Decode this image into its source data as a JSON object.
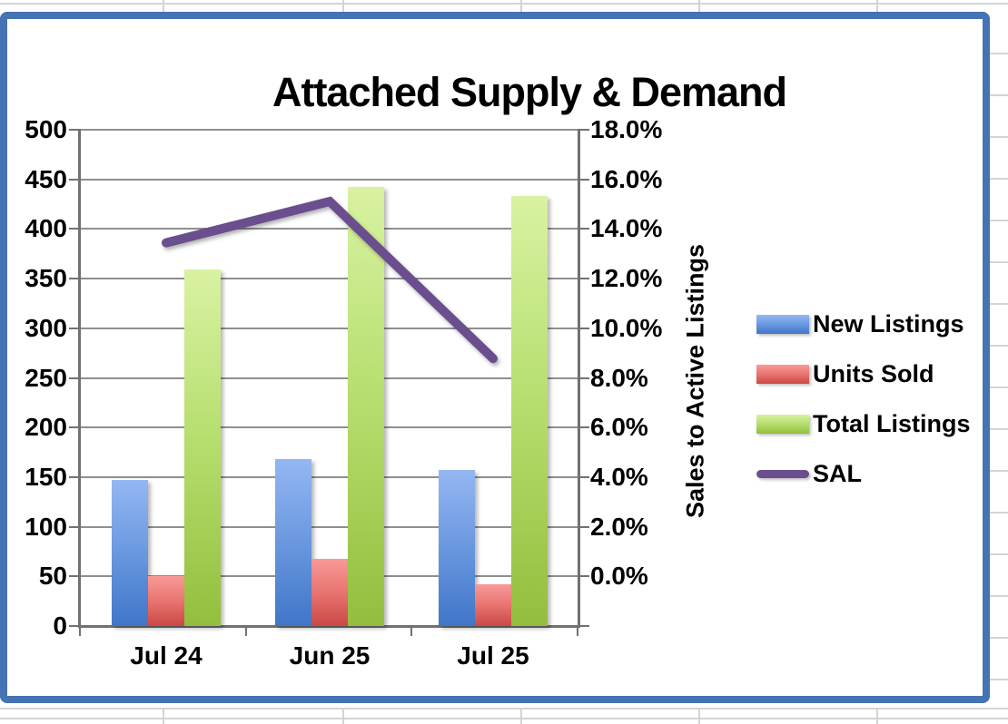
{
  "chart_data": {
    "type": "combo-bar-line",
    "title": "Attached Supply & Demand",
    "categories": [
      "Jul 24",
      "Jun 25",
      "Jul 25"
    ],
    "series": [
      {
        "name": "New Listings",
        "chart_type": "bar",
        "axis": "left",
        "values": [
          147,
          168,
          157
        ]
      },
      {
        "name": "Units Sold",
        "chart_type": "bar",
        "axis": "left",
        "values": [
          50,
          68,
          42
        ]
      },
      {
        "name": "Total Listings",
        "chart_type": "bar",
        "axis": "left",
        "values": [
          359,
          442,
          433
        ]
      },
      {
        "name": "SAL",
        "chart_type": "line",
        "axis": "right",
        "values": [
          13.9,
          15.4,
          9.7
        ],
        "unit": "%"
      }
    ],
    "left_axis": {
      "min": 0,
      "max": 500,
      "step": 50,
      "tick_labels": [
        "500",
        "450",
        "400",
        "350",
        "300",
        "250",
        "200",
        "150",
        "100",
        "50",
        "0"
      ]
    },
    "right_axis": {
      "min": 0,
      "max": 18,
      "step": 2,
      "unit": "%",
      "title": "Sales to Active Listings",
      "tick_labels": [
        "18.0%",
        "16.0%",
        "14.0%",
        "12.0%",
        "10.0%",
        "8.0%",
        "6.0%",
        "4.0%",
        "2.0%",
        "0.0%"
      ]
    },
    "legend": {
      "position": "right",
      "items": [
        "New Listings",
        "Units Sold",
        "Total Listings",
        "SAL"
      ]
    },
    "grid": true
  },
  "colors": {
    "frame_blue": "#4573B4",
    "new_listings": "#4A7CC9",
    "units_sold": "#D95555",
    "total_listings": "#9CC748",
    "sal_line": "#6A4E8E",
    "plot_gridline": "#8F8F8F",
    "sheet_gridline": "#D4D4D4"
  }
}
